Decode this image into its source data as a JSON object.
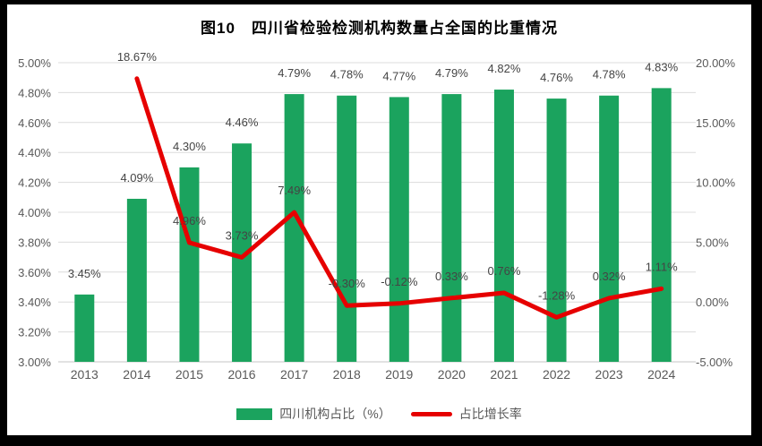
{
  "frame": {
    "background": "#000000",
    "chart_background": "#ffffff"
  },
  "chart_data": {
    "type": "bar+line combo",
    "title": "图10　四川省检验检测机构数量占全国的比重情况",
    "categories": [
      "2013",
      "2014",
      "2015",
      "2016",
      "2017",
      "2018",
      "2019",
      "2020",
      "2021",
      "2022",
      "2023",
      "2024"
    ],
    "series": [
      {
        "name": "四川机构占比（%）",
        "type": "bar",
        "axis": "left",
        "color": "#1BA35E",
        "values": [
          3.45,
          4.09,
          4.3,
          4.46,
          4.79,
          4.78,
          4.77,
          4.79,
          4.82,
          4.76,
          4.78,
          4.83
        ],
        "labels": [
          "3.45%",
          "4.09%",
          "4.30%",
          "4.46%",
          "4.79%",
          "4.78%",
          "4.77%",
          "4.79%",
          "4.82%",
          "4.76%",
          "4.78%",
          "4.83%"
        ]
      },
      {
        "name": "占比增长率",
        "type": "line",
        "axis": "right",
        "color": "#E60000",
        "values": [
          null,
          18.67,
          4.96,
          3.73,
          7.49,
          -0.3,
          -0.12,
          0.33,
          0.76,
          -1.28,
          0.32,
          1.11
        ],
        "labels": [
          null,
          "18.67%",
          "4.96%",
          "3.73%",
          "7.49%",
          "-0.30%",
          "-0.12%",
          "0.33%",
          "0.76%",
          "-1.28%",
          "0.32%",
          "1.11%"
        ]
      }
    ],
    "left_axis": {
      "min": 3.0,
      "max": 5.0,
      "step": 0.2,
      "ticks": [
        "3.00%",
        "3.20%",
        "3.40%",
        "3.60%",
        "3.80%",
        "4.00%",
        "4.20%",
        "4.40%",
        "4.60%",
        "4.80%",
        "5.00%"
      ]
    },
    "right_axis": {
      "min": -5,
      "max": 20,
      "step": 5,
      "ticks": [
        "-5.00%",
        "0.00%",
        "5.00%",
        "10.00%",
        "15.00%",
        "20.00%"
      ]
    },
    "legend": {
      "position": "bottom",
      "items": [
        "四川机构占比（%）",
        "占比增长率"
      ]
    },
    "grid": true
  },
  "styles": {
    "grid_color": "#DCDCDC",
    "axis_line_color": "#C6C6C6",
    "tick_label_color": "#595959",
    "data_label_color": "#444444",
    "title_color": "#111111"
  }
}
